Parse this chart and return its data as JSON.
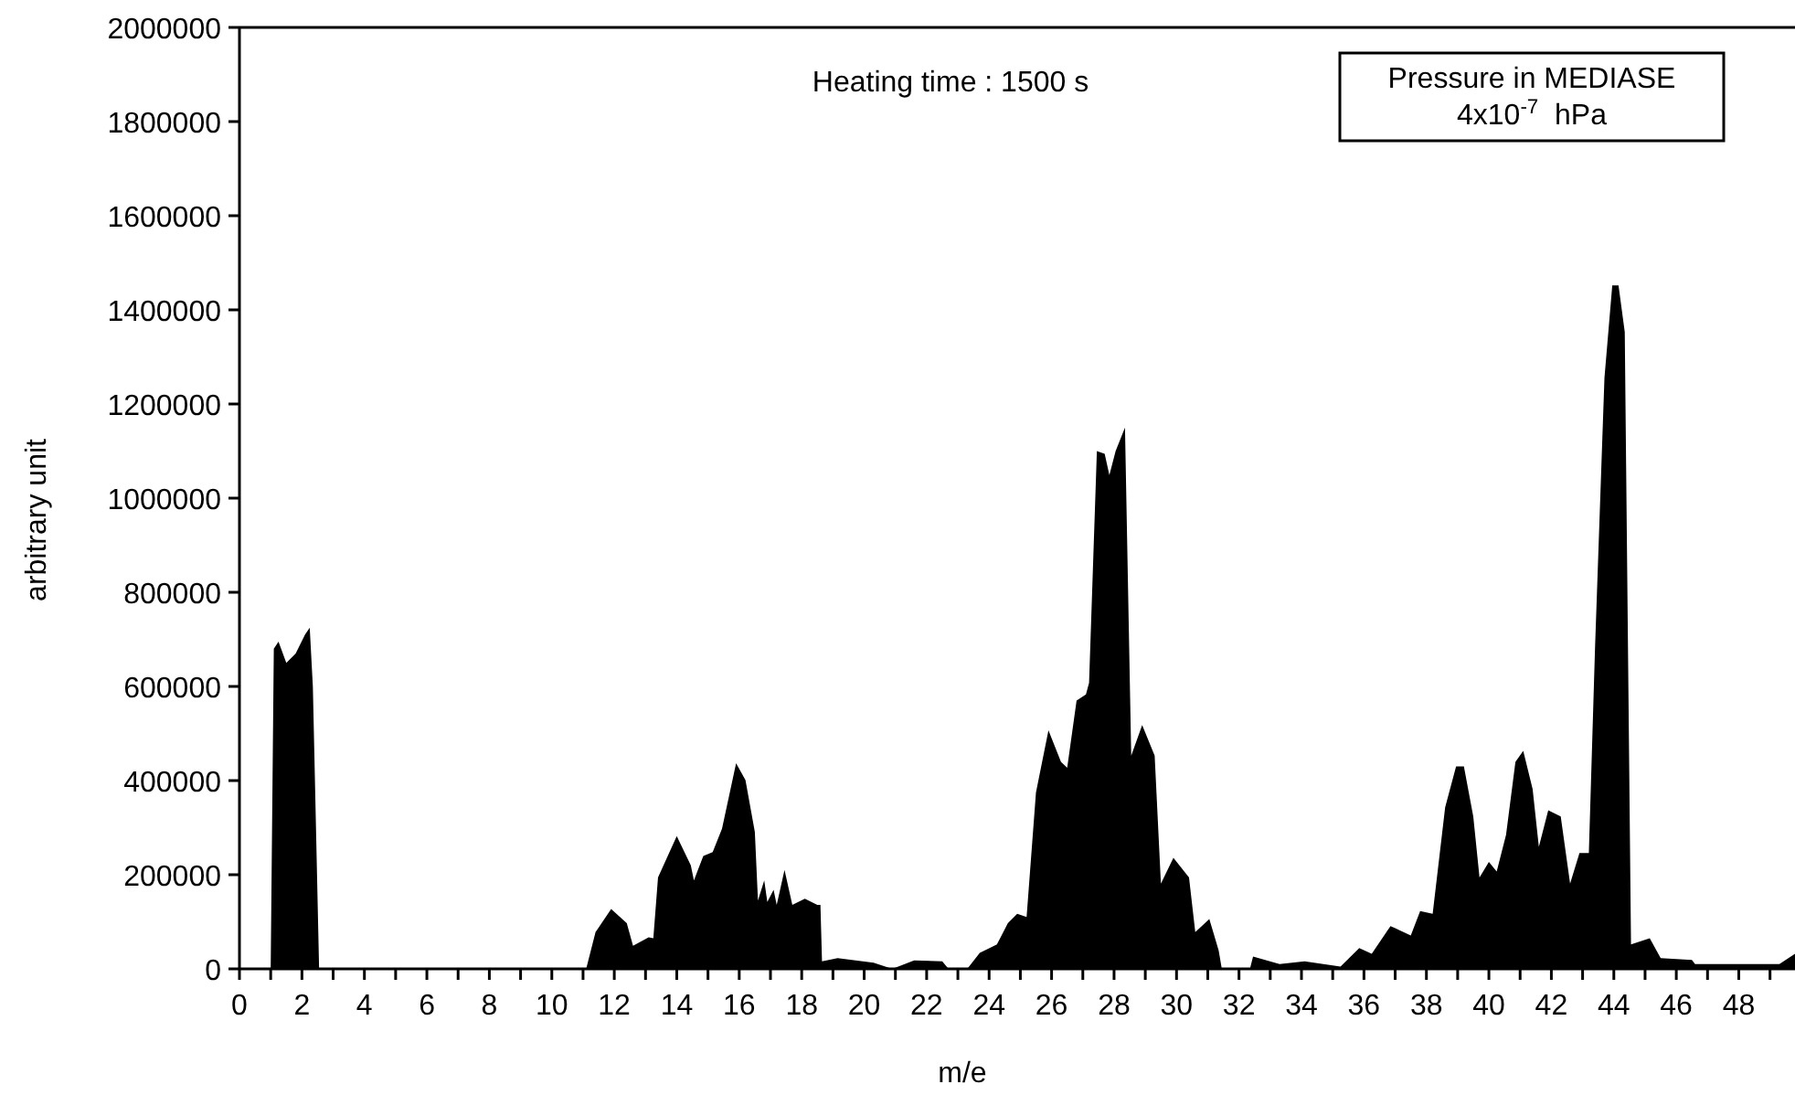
{
  "chart_data": {
    "type": "area",
    "xlabel": "m/e",
    "ylabel": "arbitrary unit",
    "annotations": [
      "Heating time : 1500 s",
      "Pressure in MEDIASE\n4x10$^{-7}$  hPa"
    ],
    "xlim": [
      0,
      49.8
    ],
    "xticks": [
      0,
      {
        "value": 1,
        "label": null
      },
      2,
      {
        "value": 3,
        "label": null
      },
      4,
      {
        "value": 5,
        "label": null
      },
      6,
      {
        "value": 7,
        "label": null
      },
      8,
      {
        "value": 9,
        "label": null
      },
      10,
      {
        "value": 11,
        "label": null
      },
      12,
      {
        "value": 13,
        "label": null
      },
      14,
      {
        "value": 15,
        "label": null
      },
      16,
      {
        "value": 17,
        "label": null
      },
      18,
      {
        "value": 19,
        "label": null
      },
      20,
      {
        "value": 21,
        "label": null
      },
      22,
      {
        "value": 23,
        "label": null
      },
      24,
      {
        "value": 25,
        "label": null
      },
      26,
      {
        "value": 27,
        "label": null
      },
      28,
      {
        "value": 29,
        "label": null
      },
      30,
      {
        "value": 31,
        "label": null
      },
      32,
      {
        "value": 33,
        "label": null
      },
      34,
      {
        "value": 35,
        "label": null
      },
      36,
      {
        "value": 37,
        "label": null
      },
      38,
      {
        "value": 39,
        "label": null
      },
      40,
      {
        "value": 41,
        "label": null
      },
      42,
      {
        "value": 43,
        "label": null
      },
      44,
      {
        "value": 45,
        "label": null
      },
      46,
      {
        "value": 47,
        "label": null
      },
      48,
      {
        "value": 49,
        "label": null
      }
    ],
    "ylim": [
      0,
      2000000
    ],
    "yticks": [
      0,
      200000,
      400000,
      600000,
      800000,
      1000000,
      1200000,
      1400000,
      1600000,
      1800000,
      2000000
    ],
    "grid": false,
    "series": [
      {
        "color": "#000000",
        "x": [
          0,
          1.0,
          1.1,
          1.25,
          1.5,
          1.8,
          2.1,
          2.25,
          2.35,
          2.45,
          2.55,
          11.1,
          11.4,
          11.9,
          12.4,
          12.6,
          13.1,
          13.25,
          13.4,
          14.0,
          14.45,
          14.55,
          14.85,
          15.15,
          15.45,
          15.9,
          16.2,
          16.5,
          16.6,
          16.8,
          16.9,
          17.1,
          17.2,
          17.45,
          17.7,
          18.1,
          18.5,
          18.6,
          18.65,
          19.15,
          20.3,
          20.9,
          21.6,
          22.5,
          22.7,
          23.3,
          23.7,
          24.25,
          24.6,
          24.9,
          25.2,
          25.5,
          25.9,
          26.3,
          26.5,
          26.8,
          27.1,
          27.2,
          27.45,
          27.7,
          27.85,
          28.05,
          28.35,
          28.55,
          28.9,
          29.3,
          29.5,
          29.9,
          30.4,
          30.6,
          31.05,
          31.35,
          31.45,
          32.35,
          32.45,
          33.3,
          34.1,
          35.25,
          35.85,
          36.25,
          36.85,
          37.5,
          37.8,
          38.2,
          38.6,
          38.95,
          39.2,
          39.5,
          39.7,
          40.0,
          40.25,
          40.55,
          40.85,
          41.1,
          41.4,
          41.6,
          41.9,
          42.3,
          42.6,
          42.9,
          43.2,
          43.4,
          43.7,
          43.95,
          44.15,
          44.35,
          44.55,
          45.15,
          45.5,
          46.5,
          46.6,
          49.3,
          49.8
        ],
        "values": [
          0,
          0,
          680000,
          695000,
          650000,
          670000,
          710000,
          725000,
          600000,
          300000,
          0,
          0,
          78000,
          127000,
          97000,
          49000,
          67000,
          65000,
          194000,
          282000,
          220000,
          188000,
          240000,
          248000,
          298000,
          437000,
          401000,
          291000,
          145000,
          188000,
          142000,
          168000,
          136000,
          210000,
          136000,
          149000,
          136000,
          136000,
          16000,
          23000,
          13000,
          0,
          18000,
          16000,
          0,
          0,
          34000,
          52000,
          97000,
          117000,
          110000,
          375000,
          507000,
          440000,
          427000,
          570000,
          583000,
          608000,
          1100000,
          1094000,
          1049000,
          1100000,
          1150000,
          453000,
          518000,
          453000,
          181000,
          236000,
          194000,
          78000,
          106000,
          39000,
          0,
          0,
          26000,
          10000,
          16000,
          5000,
          44000,
          32000,
          91000,
          71000,
          123000,
          117000,
          343000,
          430000,
          430000,
          324000,
          194000,
          227000,
          207000,
          285000,
          440000,
          463000,
          382000,
          259000,
          337000,
          324000,
          181000,
          246000,
          246000,
          686000,
          1256000,
          1452000,
          1452000,
          1353000,
          52000,
          65000,
          23000,
          19000,
          10000,
          10000,
          32000
        ]
      }
    ]
  }
}
